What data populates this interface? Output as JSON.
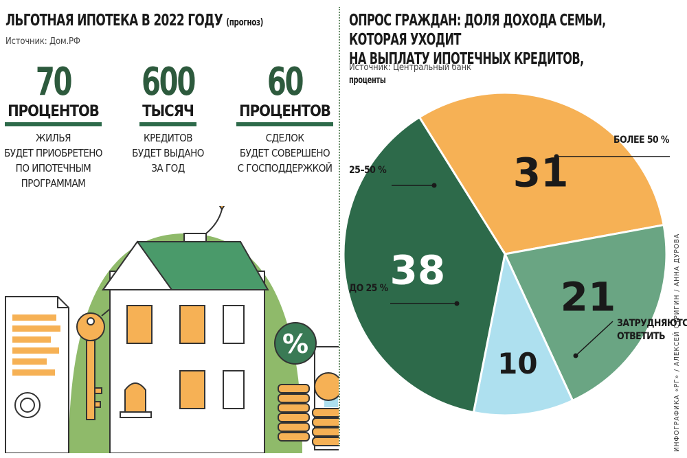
{
  "left": {
    "title": "ЛЬГОТНАЯ ИПОТЕКА В 2022 ГОДУ",
    "title_note": "(прогноз)",
    "source": "Источник: Дом.РФ",
    "stats": [
      {
        "value": "70",
        "unit": "ПРОЦЕНТОВ",
        "desc_lines": [
          "ЖИЛЬЯ",
          "БУДЕТ ПРИОБРЕТЕНО",
          "ПО ИПОТЕЧНЫМ",
          "ПРОГРАММАМ"
        ]
      },
      {
        "value": "600",
        "unit": "ТЫСЯЧ",
        "desc_lines": [
          "КРЕДИТОВ",
          "БУДЕТ ВЫДАНО",
          "ЗА ГОД"
        ]
      },
      {
        "value": "60",
        "unit": "ПРОЦЕНТОВ",
        "desc_lines": [
          "СДЕЛОК",
          "БУДЕТ СОВЕРШЕНО",
          "С ГОСПОДДЕРЖКОЙ"
        ]
      }
    ],
    "illustration_symbol": "%"
  },
  "right": {
    "title_line1": "ОПРОС ГРАЖДАН: ДОЛЯ ДОХОДА СЕМЬИ, КОТОРАЯ УХОДИТ",
    "title_line2": "НА ВЫПЛАТУ ИПОТЕЧНЫХ КРЕДИТОВ,",
    "title_unit": "проценты",
    "source": "Источник: Центральный банк"
  },
  "credit": "ИНФОГРАФИКА «РГ» / АЛЕКСЕЙ СТРИГИН / АННА ДУРОВА",
  "chart_data": {
    "type": "pie",
    "title": "ОПРОС ГРАЖДАН: ДОЛЯ ДОХОДА СЕМЬИ, КОТОРАЯ УХОДИТ НА ВЫПЛАТУ ИПОТЕЧНЫХ КРЕДИТОВ, проценты",
    "categories": [
      "25–50 %",
      "более 50 %",
      "затрудняются ответить",
      "до 25 %"
    ],
    "values": [
      31,
      21,
      10,
      38
    ],
    "labels": [
      "31",
      "21",
      "10",
      "38"
    ],
    "colors": [
      "#f6b155",
      "#6aa583",
      "#aee0ef",
      "#2d6a4a"
    ],
    "label_colors": [
      "#1a1a1a",
      "#1a1a1a",
      "#1a1a1a",
      "#ffffff"
    ]
  }
}
